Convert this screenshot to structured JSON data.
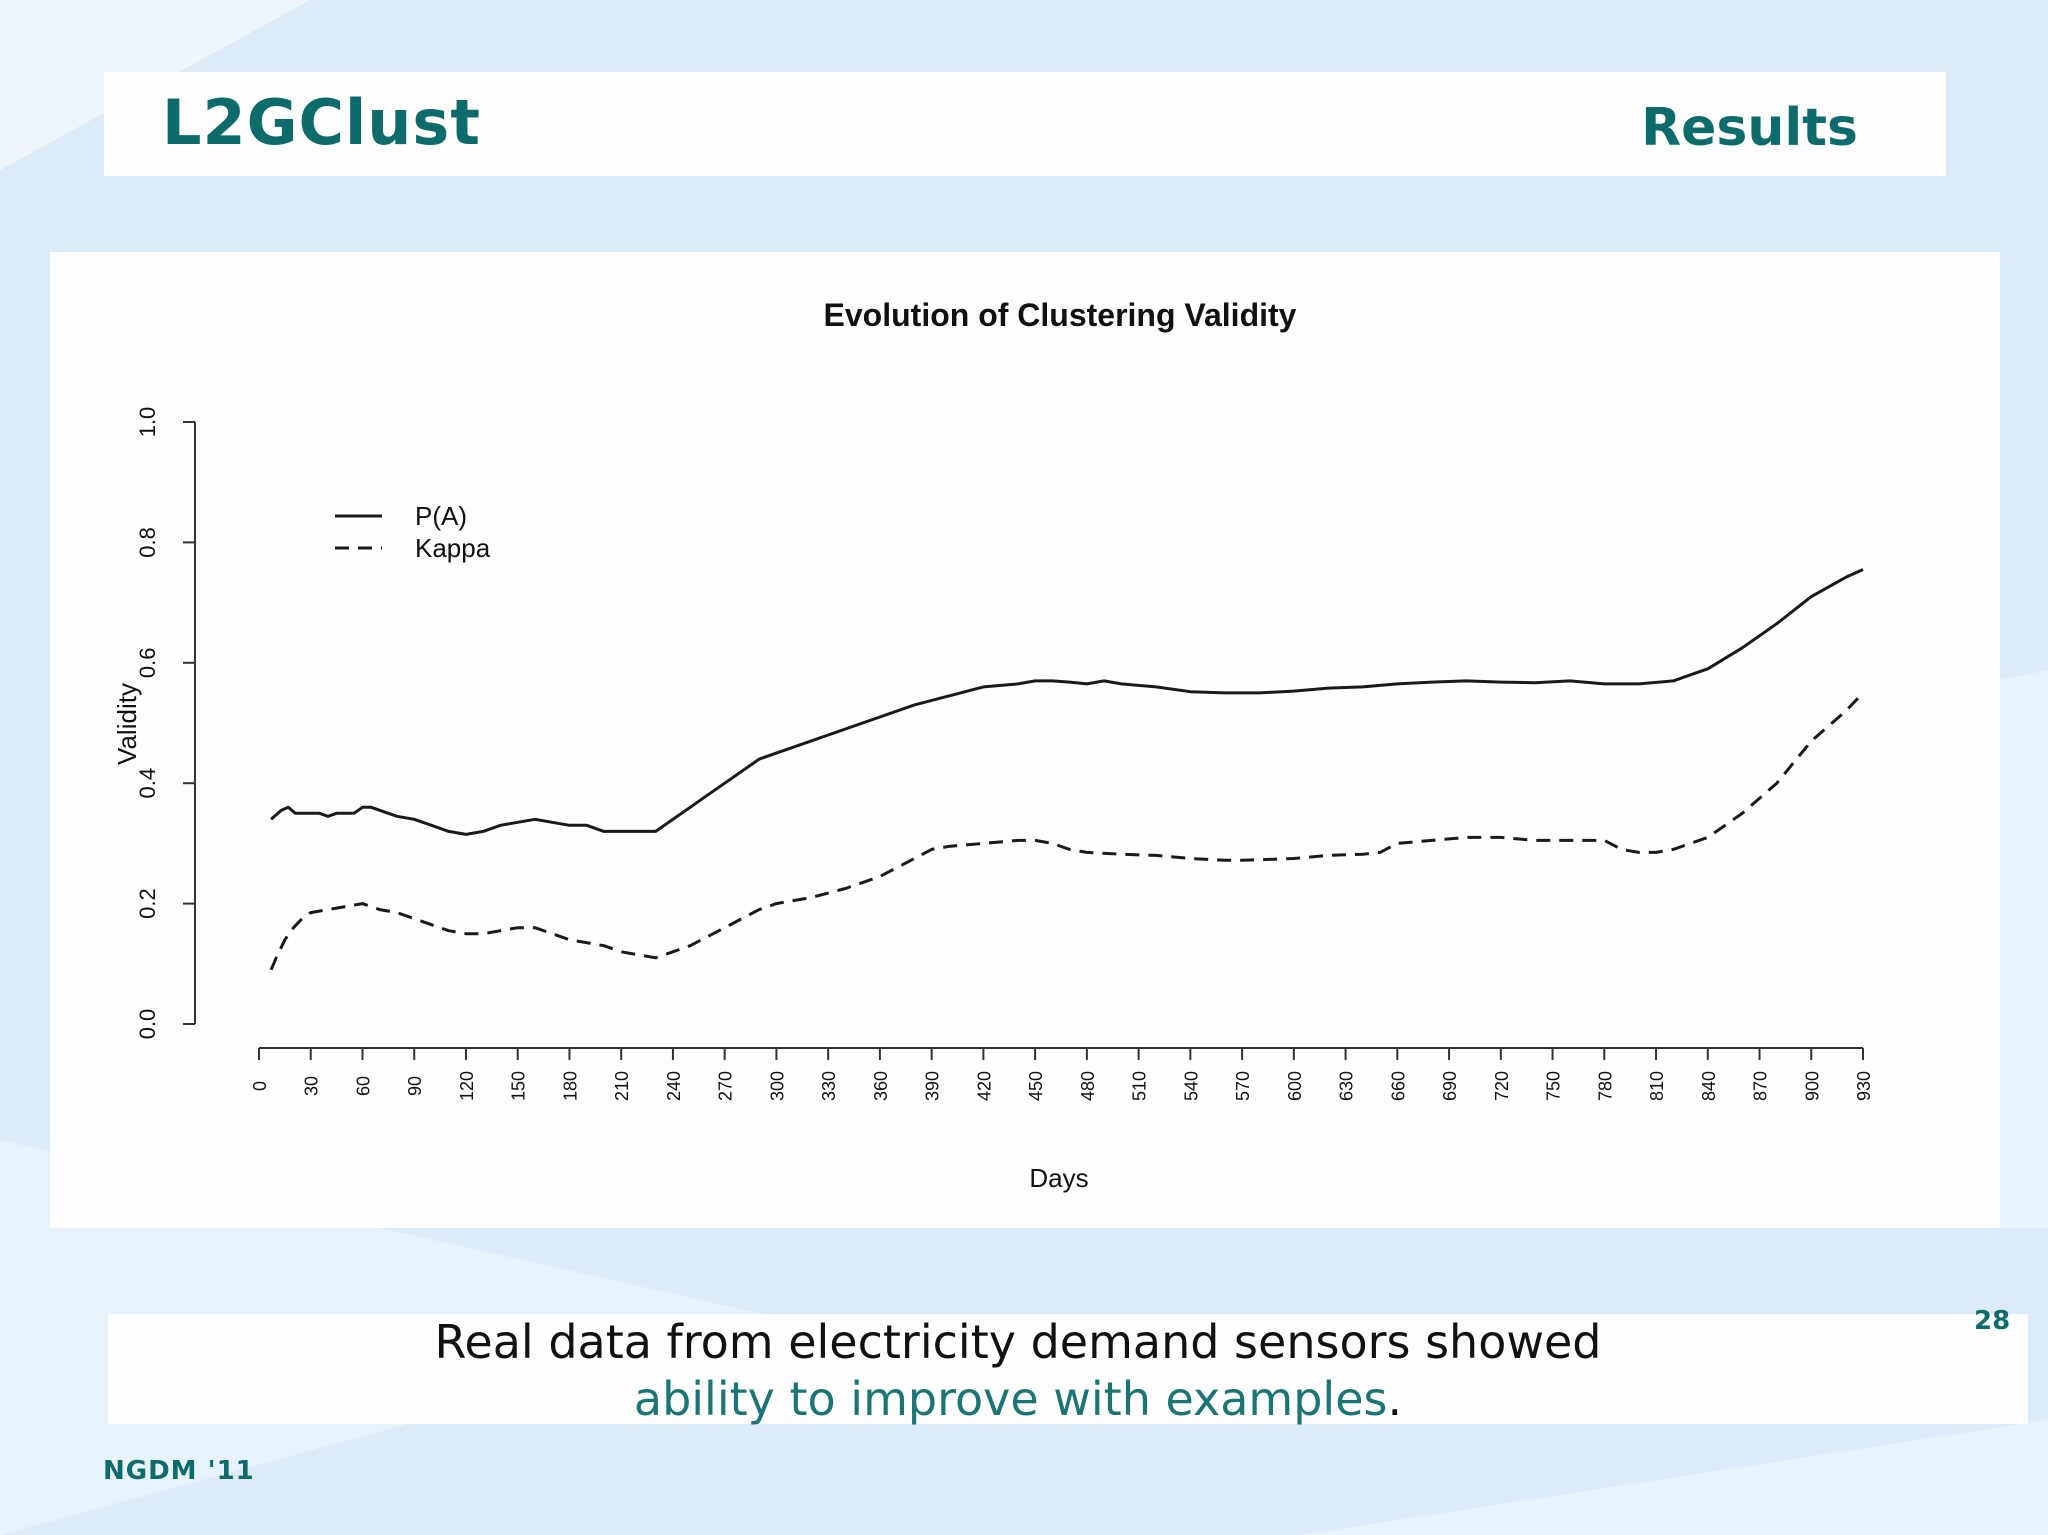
{
  "header": {
    "title": "L2GClust",
    "section": "Results"
  },
  "chart_data": {
    "type": "line",
    "title": "Evolution of Clustering Validity",
    "xlabel": "Days",
    "ylabel": "Validity",
    "xlim": [
      0,
      930
    ],
    "ylim": [
      0,
      1
    ],
    "x_ticks": [
      0,
      30,
      60,
      90,
      120,
      150,
      180,
      210,
      240,
      270,
      300,
      330,
      360,
      390,
      420,
      450,
      480,
      510,
      540,
      570,
      600,
      630,
      660,
      690,
      720,
      750,
      780,
      810,
      840,
      870,
      900,
      930
    ],
    "y_ticks": [
      "0.0",
      "0.2",
      "0.4",
      "0.6",
      "0.8",
      "1.0"
    ],
    "legend_position": "top-left",
    "grid": false,
    "series": [
      {
        "name": "P(A)",
        "style": "solid",
        "x": [
          7,
          13,
          17,
          21,
          25,
          30,
          35,
          40,
          45,
          50,
          55,
          60,
          65,
          70,
          80,
          90,
          100,
          110,
          120,
          130,
          140,
          150,
          160,
          170,
          180,
          190,
          200,
          210,
          220,
          230,
          240,
          250,
          260,
          270,
          280,
          290,
          300,
          320,
          340,
          360,
          380,
          400,
          420,
          440,
          450,
          460,
          470,
          480,
          490,
          500,
          520,
          540,
          560,
          580,
          600,
          620,
          640,
          660,
          680,
          700,
          720,
          740,
          760,
          780,
          800,
          820,
          830,
          840,
          860,
          880,
          900,
          920,
          930
        ],
        "y": [
          0.34,
          0.355,
          0.36,
          0.35,
          0.35,
          0.35,
          0.35,
          0.345,
          0.35,
          0.35,
          0.35,
          0.36,
          0.36,
          0.355,
          0.345,
          0.34,
          0.33,
          0.32,
          0.315,
          0.32,
          0.33,
          0.335,
          0.34,
          0.335,
          0.33,
          0.33,
          0.32,
          0.32,
          0.32,
          0.32,
          0.34,
          0.36,
          0.38,
          0.4,
          0.42,
          0.44,
          0.45,
          0.47,
          0.49,
          0.51,
          0.53,
          0.545,
          0.56,
          0.565,
          0.57,
          0.57,
          0.568,
          0.565,
          0.57,
          0.565,
          0.56,
          0.552,
          0.55,
          0.55,
          0.553,
          0.558,
          0.56,
          0.565,
          0.568,
          0.57,
          0.568,
          0.567,
          0.57,
          0.565,
          0.565,
          0.57,
          0.58,
          0.59,
          0.625,
          0.665,
          0.71,
          0.742,
          0.755
        ]
      },
      {
        "name": "Kappa",
        "style": "dashed",
        "x": [
          7,
          10,
          15,
          20,
          25,
          30,
          40,
          50,
          60,
          70,
          80,
          90,
          100,
          110,
          120,
          130,
          140,
          150,
          160,
          170,
          180,
          190,
          200,
          210,
          220,
          230,
          240,
          250,
          260,
          270,
          280,
          290,
          300,
          320,
          340,
          360,
          380,
          390,
          400,
          420,
          440,
          450,
          460,
          470,
          480,
          500,
          520,
          540,
          560,
          570,
          580,
          600,
          620,
          640,
          650,
          660,
          680,
          700,
          720,
          740,
          760,
          780,
          790,
          800,
          810,
          820,
          830,
          840,
          860,
          880,
          900,
          920,
          930
        ],
        "y": [
          0.09,
          0.11,
          0.14,
          0.16,
          0.175,
          0.185,
          0.19,
          0.195,
          0.2,
          0.19,
          0.185,
          0.175,
          0.165,
          0.155,
          0.15,
          0.15,
          0.155,
          0.16,
          0.16,
          0.15,
          0.14,
          0.135,
          0.13,
          0.12,
          0.115,
          0.11,
          0.12,
          0.13,
          0.145,
          0.16,
          0.175,
          0.19,
          0.2,
          0.21,
          0.225,
          0.245,
          0.275,
          0.29,
          0.295,
          0.3,
          0.305,
          0.305,
          0.3,
          0.29,
          0.285,
          0.282,
          0.28,
          0.275,
          0.272,
          0.272,
          0.273,
          0.275,
          0.28,
          0.282,
          0.285,
          0.3,
          0.305,
          0.31,
          0.31,
          0.305,
          0.305,
          0.305,
          0.29,
          0.285,
          0.285,
          0.29,
          0.3,
          0.31,
          0.35,
          0.4,
          0.47,
          0.52,
          0.55
        ]
      }
    ]
  },
  "caption": {
    "line1": "Real data from electricity demand sensors showed",
    "highlight": "ability to improve with examples",
    "end": "."
  },
  "page_number": "28",
  "footer": "NGDM '11",
  "colors": {
    "title": "#0e6b6b",
    "highlight": "#1b7575",
    "background": "#dcebf7",
    "panel": "#fdfdfd",
    "line": "#1a1a1a"
  }
}
